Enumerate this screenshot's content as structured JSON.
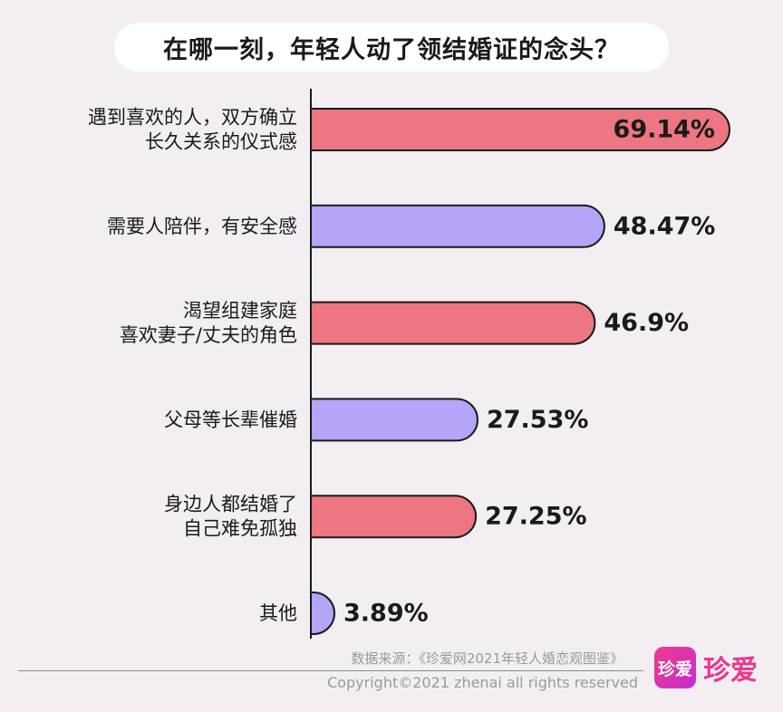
{
  "chart_data": {
    "type": "bar",
    "orientation": "horizontal",
    "title": "在哪一刻，年轻人动了领结婚证的念头？",
    "categories": [
      [
        "遇到喜欢的人，双方确立",
        "长久关系的仪式感"
      ],
      [
        "需要人陪伴，有安全感"
      ],
      [
        "渴望组建家庭",
        "喜欢妻子/丈夫的角色"
      ],
      [
        "父母等长辈催婚"
      ],
      [
        "身边人都结婚了",
        "自己难免孤独"
      ],
      [
        "其他"
      ]
    ],
    "values": [
      69.14,
      48.47,
      46.9,
      27.53,
      27.25,
      3.89
    ],
    "value_labels": [
      "69.14%",
      "48.47%",
      "46.9%",
      "27.53%",
      "27.25%",
      "3.89%"
    ],
    "bar_colors": [
      "#ec7681",
      "#b5a4f8",
      "#ec7681",
      "#b5a4f8",
      "#ec7681",
      "#b5a4f8"
    ],
    "xlim": [
      0,
      69.14
    ],
    "grid": false,
    "legend": "none"
  },
  "footer": {
    "source": "数据来源：《珍爱网2021年轻人婚恋观图鉴》",
    "copyright": "Copyright©2021  zhenai  all rights reserved"
  },
  "logo": {
    "box_text": "珍爱",
    "text": "珍爱",
    "color": "#e8388f"
  }
}
